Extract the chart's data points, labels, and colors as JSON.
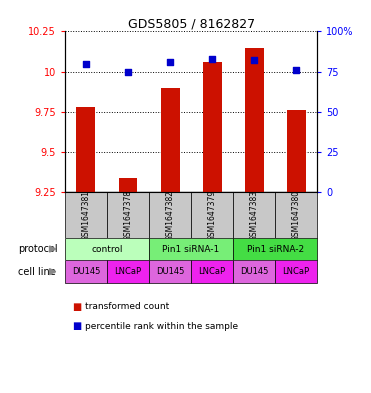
{
  "title": "GDS5805 / 8162827",
  "samples": [
    "GSM1647381",
    "GSM1647378",
    "GSM1647382",
    "GSM1647379",
    "GSM1647383",
    "GSM1647380"
  ],
  "red_values": [
    9.78,
    9.34,
    9.9,
    10.06,
    10.15,
    9.76
  ],
  "blue_values": [
    80,
    75,
    81,
    83,
    82,
    76
  ],
  "ylim_left": [
    9.25,
    10.25
  ],
  "ylim_right": [
    0,
    100
  ],
  "yticks_left": [
    9.25,
    9.5,
    9.75,
    10.0,
    10.25
  ],
  "yticks_right": [
    0,
    25,
    50,
    75,
    100
  ],
  "ytick_labels_left": [
    "9.25",
    "9.5",
    "9.75",
    "10",
    "10.25"
  ],
  "ytick_labels_right": [
    "0",
    "25",
    "50",
    "75",
    "100%"
  ],
  "protocol_groups": [
    {
      "label": "control",
      "cols": [
        0,
        1
      ],
      "color": "#bbffbb"
    },
    {
      "label": "Pin1 siRNA-1",
      "cols": [
        2,
        3
      ],
      "color": "#77ee77"
    },
    {
      "label": "Pin1 siRNA-2",
      "cols": [
        4,
        5
      ],
      "color": "#44dd44"
    }
  ],
  "cell_lines": [
    "DU145",
    "LNCaP",
    "DU145",
    "LNCaP",
    "DU145",
    "LNCaP"
  ],
  "bar_color": "#cc1100",
  "dot_color": "#0000cc",
  "sample_bg_color": "#c8c8c8",
  "cell_colors": {
    "DU145": "#dd66dd",
    "LNCaP": "#ee22ee"
  },
  "legend_red_label": "transformed count",
  "legend_blue_label": "percentile rank within the sample",
  "protocol_label": "protocol",
  "cell_line_label": "cell line",
  "arrow_color": "#888888"
}
